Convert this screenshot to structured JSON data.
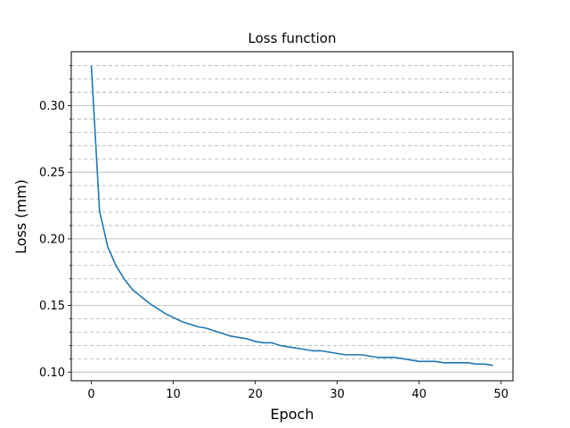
{
  "chart_data": {
    "type": "line",
    "title": "Loss function",
    "xlabel": "Epoch",
    "ylabel": "Loss (mm)",
    "xlim": [
      -2.45,
      51.45
    ],
    "ylim": [
      0.0935,
      0.3405
    ],
    "xticks": [
      0,
      10,
      20,
      30,
      40,
      50
    ],
    "xtick_labels": [
      "0",
      "10",
      "20",
      "30",
      "40",
      "50"
    ],
    "yticks_major": [
      0.1,
      0.15,
      0.2,
      0.25,
      0.3
    ],
    "ytick_labels": [
      "0.10",
      "0.15",
      "0.20",
      "0.25",
      "0.30"
    ],
    "yticks_minor": [
      0.11,
      0.12,
      0.13,
      0.14,
      0.16,
      0.17,
      0.18,
      0.19,
      0.21,
      0.22,
      0.23,
      0.24,
      0.26,
      0.27,
      0.28,
      0.29,
      0.31,
      0.32,
      0.33
    ],
    "grid": "y-axis, major solid, minor dashed",
    "series": [
      {
        "color": "#1f77b4",
        "x": [
          0,
          1,
          2,
          3,
          4,
          5,
          6,
          7,
          8,
          9,
          10,
          11,
          12,
          13,
          14,
          15,
          16,
          17,
          18,
          19,
          20,
          21,
          22,
          23,
          24,
          25,
          26,
          27,
          28,
          29,
          30,
          31,
          32,
          33,
          34,
          35,
          36,
          37,
          38,
          39,
          40,
          41,
          42,
          43,
          44,
          45,
          46,
          47,
          48,
          49
        ],
        "values": [
          0.33,
          0.221,
          0.194,
          0.18,
          0.17,
          0.162,
          0.157,
          0.152,
          0.148,
          0.144,
          0.141,
          0.138,
          0.136,
          0.134,
          0.133,
          0.131,
          0.129,
          0.127,
          0.126,
          0.125,
          0.123,
          0.122,
          0.122,
          0.12,
          0.119,
          0.118,
          0.117,
          0.116,
          0.116,
          0.115,
          0.114,
          0.113,
          0.113,
          0.113,
          0.112,
          0.111,
          0.111,
          0.111,
          0.11,
          0.109,
          0.108,
          0.108,
          0.108,
          0.107,
          0.107,
          0.107,
          0.107,
          0.106,
          0.106,
          0.105
        ]
      }
    ]
  }
}
